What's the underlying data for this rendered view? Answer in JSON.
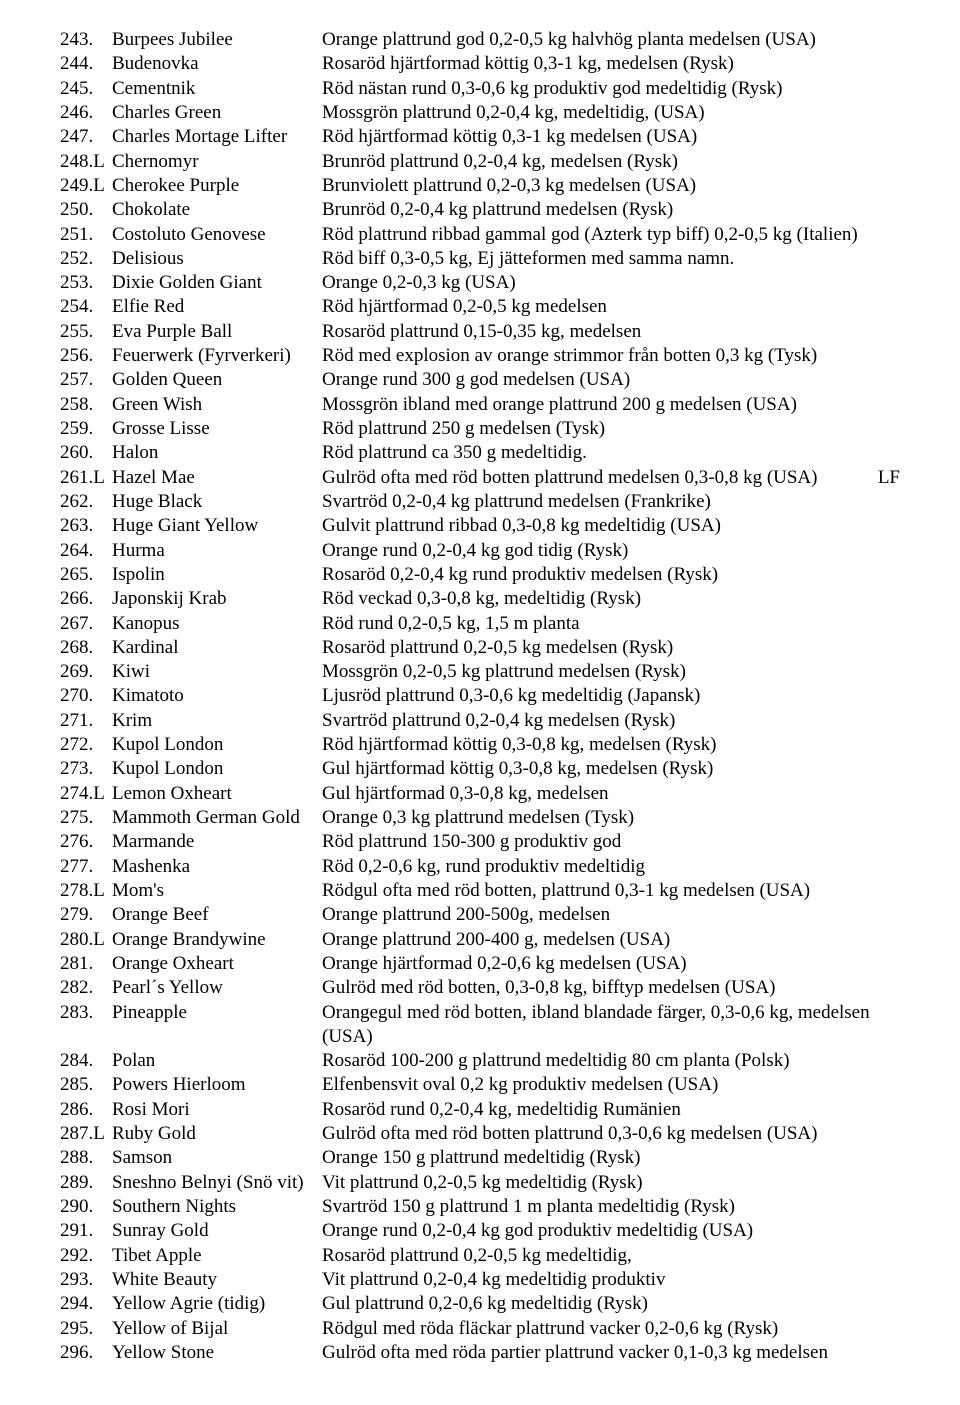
{
  "rows": [
    {
      "num": "243.",
      "name": "Burpees Jubilee",
      "desc": "Orange plattrund god 0,2-0,5 kg halvhög planta medelsen (USA)"
    },
    {
      "num": "244.",
      "name": "Budenovka",
      "desc": "Rosaröd hjärtformad köttig 0,3-1 kg, medelsen (Rysk)"
    },
    {
      "num": "245.",
      "name": "Cementnik",
      "desc": "Röd nästan rund 0,3-0,6 kg produktiv god medeltidig (Rysk)"
    },
    {
      "num": "246.",
      "name": "Charles Green",
      "desc": "Mossgrön plattrund 0,2-0,4 kg, medeltidig, (USA)"
    },
    {
      "num": "247.",
      "name": "Charles Mortage Lifter",
      "desc": "Röd hjärtformad köttig 0,3-1 kg medelsen (USA)"
    },
    {
      "num": "248.L",
      "name": "Chernomyr",
      "desc": "Brunröd plattrund 0,2-0,4 kg, medelsen (Rysk)"
    },
    {
      "num": "249.L",
      "name": "Cherokee Purple",
      "desc": "Brunviolett plattrund 0,2-0,3 kg medelsen (USA)"
    },
    {
      "num": "250.",
      "name": "Chokolate",
      "desc": "Brunröd 0,2-0,4 kg plattrund medelsen (Rysk)"
    },
    {
      "num": "251.",
      "name": "Costoluto Genovese",
      "desc": "Röd plattrund ribbad gammal god (Azterk typ biff) 0,2-0,5 kg (Italien)"
    },
    {
      "num": "252.",
      "name": "Delisious",
      "desc": "Röd biff 0,3-0,5 kg, Ej jätteformen med samma namn."
    },
    {
      "num": "253.",
      "name": "Dixie Golden Giant",
      "desc": "Orange 0,2-0,3 kg (USA)"
    },
    {
      "num": "254.",
      "name": "Elfie Red",
      "desc": "Röd hjärtformad 0,2-0,5 kg medelsen"
    },
    {
      "num": "255.",
      "name": "Eva Purple Ball",
      "desc": "Rosaröd plattrund 0,15-0,35 kg, medelsen"
    },
    {
      "num": "256.",
      "name": "Feuerwerk (Fyrverkeri)",
      "desc": "Röd med explosion av orange strimmor från botten 0,3 kg (Tysk)"
    },
    {
      "num": "257.",
      "name": "Golden Queen",
      "desc": "Orange rund 300 g god medelsen (USA)"
    },
    {
      "num": "258.",
      "name": "Green Wish",
      "desc": "Mossgrön ibland med orange plattrund 200 g medelsen (USA)"
    },
    {
      "num": "259.",
      "name": "Grosse Lisse",
      "desc": "Röd plattrund 250 g medelsen (Tysk)"
    },
    {
      "num": "260.",
      "name": "Halon",
      "desc": "Röd plattrund ca 350 g medeltidig."
    },
    {
      "num": "261.L",
      "name": "Hazel Mae",
      "desc": "Gulröd ofta med röd botten plattrund medelsen 0,3-0,8 kg (USA)",
      "lf": "LF"
    },
    {
      "num": "262.",
      "name": "Huge Black",
      "desc": "Svartröd 0,2-0,4 kg plattrund medelsen (Frankrike)"
    },
    {
      "num": "263.",
      "name": "Huge Giant Yellow",
      "desc": "Gulvit plattrund ribbad 0,3-0,8 kg medeltidig (USA)"
    },
    {
      "num": "264.",
      "name": "Hurma",
      "desc": "Orange rund 0,2-0,4 kg god tidig (Rysk)"
    },
    {
      "num": "265.",
      "name": "Ispolin",
      "desc": "Rosaröd 0,2-0,4 kg rund produktiv medelsen (Rysk)"
    },
    {
      "num": "266.",
      "name": "Japonskij Krab",
      "desc": "Röd veckad 0,3-0,8 kg, medeltidig (Rysk)"
    },
    {
      "num": "267.",
      "name": "Kanopus",
      "desc": "Röd rund 0,2-0,5 kg, 1,5 m planta"
    },
    {
      "num": "268.",
      "name": "Kardinal",
      "desc": "Rosaröd plattrund 0,2-0,5 kg medelsen (Rysk)"
    },
    {
      "num": "269.",
      "name": "Kiwi",
      "desc": "Mossgrön 0,2-0,5 kg plattrund medelsen (Rysk)"
    },
    {
      "num": "270.",
      "name": "Kimatoto",
      "desc": "Ljusröd plattrund 0,3-0,6 kg medeltidig (Japansk)"
    },
    {
      "num": "271.",
      "name": "Krim",
      "desc": "Svartröd plattrund 0,2-0,4 kg medelsen (Rysk)"
    },
    {
      "num": "272.",
      "name": "Kupol London",
      "desc": "Röd hjärtformad köttig 0,3-0,8 kg, medelsen (Rysk)"
    },
    {
      "num": "273.",
      "name": "Kupol London",
      "desc": "Gul hjärtformad köttig 0,3-0,8 kg, medelsen (Rysk)"
    },
    {
      "num": "274.L",
      "name": "Lemon Oxheart",
      "desc": "Gul hjärtformad 0,3-0,8 kg, medelsen"
    },
    {
      "num": "275.",
      "name": "Mammoth German Gold",
      "desc": "Orange 0,3 kg plattrund medelsen (Tysk)"
    },
    {
      "num": "276.",
      "name": "Marmande",
      "desc": "Röd plattrund 150-300 g produktiv god"
    },
    {
      "num": "277.",
      "name": "Mashenka",
      "desc": "Röd 0,2-0,6 kg, rund produktiv medeltidig"
    },
    {
      "num": "278.L",
      "name": "Mom's",
      "desc": "Rödgul ofta med röd botten, plattrund 0,3-1 kg medelsen (USA)"
    },
    {
      "num": "279.",
      "name": "Orange Beef",
      "desc": "Orange plattrund 200-500g, medelsen"
    },
    {
      "num": "280.L",
      "name": "Orange Brandywine",
      "desc": "Orange plattrund 200-400 g, medelsen (USA)"
    },
    {
      "num": "281.",
      "name": "Orange Oxheart",
      "desc": "Orange hjärtformad 0,2-0,6 kg medelsen (USA)"
    },
    {
      "num": "282.",
      "name": "Pearl´s Yellow",
      "desc": "Gulröd med röd botten, 0,3-0,8 kg, bifftyp medelsen (USA)"
    },
    {
      "num": "283.",
      "name": "Pineapple",
      "desc": "Orangegul med röd botten, ibland blandade färger, 0,3-0,6 kg, medelsen (USA)"
    },
    {
      "num": "284.",
      "name": "Polan",
      "desc": "Rosaröd 100-200 g plattrund medeltidig 80 cm planta (Polsk)"
    },
    {
      "num": "285.",
      "name": "Powers Hierloom",
      "desc": "Elfenbensvit oval 0,2 kg produktiv medelsen (USA)"
    },
    {
      "num": "286.",
      "name": "Rosi Mori",
      "desc": "Rosaröd rund 0,2-0,4 kg, medeltidig Rumänien"
    },
    {
      "num": "287.L",
      "name": "Ruby Gold",
      "desc": "Gulröd ofta med röd botten plattrund 0,3-0,6 kg medelsen (USA)"
    },
    {
      "num": "288.",
      "name": "Samson",
      "desc": "Orange 150 g plattrund medeltidig (Rysk)"
    },
    {
      "num": "289.",
      "name": "Sneshno Belnyi (Snö vit)",
      "desc": "Vit plattrund 0,2-0,5 kg medeltidig (Rysk)"
    },
    {
      "num": "290.",
      "name": "Southern Nights",
      "desc": "Svartröd 150 g plattrund 1 m planta medeltidig (Rysk)"
    },
    {
      "num": "291.",
      "name": "Sunray Gold",
      "desc": "Orange rund 0,2-0,4 kg god produktiv medeltidig (USA)"
    },
    {
      "num": "292.",
      "name": "Tibet Apple",
      "desc": "Rosaröd plattrund 0,2-0,5 kg medeltidig,"
    },
    {
      "num": "293.",
      "name": "White Beauty",
      "desc": "Vit plattrund 0,2-0,4 kg medeltidig produktiv"
    },
    {
      "num": "294.",
      "name": "Yellow Agrie (tidig)",
      "desc": "Gul plattrund 0,2-0,6 kg medeltidig (Rysk)"
    },
    {
      "num": "295.",
      "name": "Yellow of Bijal",
      "desc": "Rödgul med röda fläckar plattrund vacker 0,2-0,6 kg (Rysk)"
    },
    {
      "num": "296.",
      "name": "Yellow Stone",
      "desc": "Gulröd ofta med röda partier plattrund vacker 0,1-0,3 kg medelsen"
    }
  ]
}
